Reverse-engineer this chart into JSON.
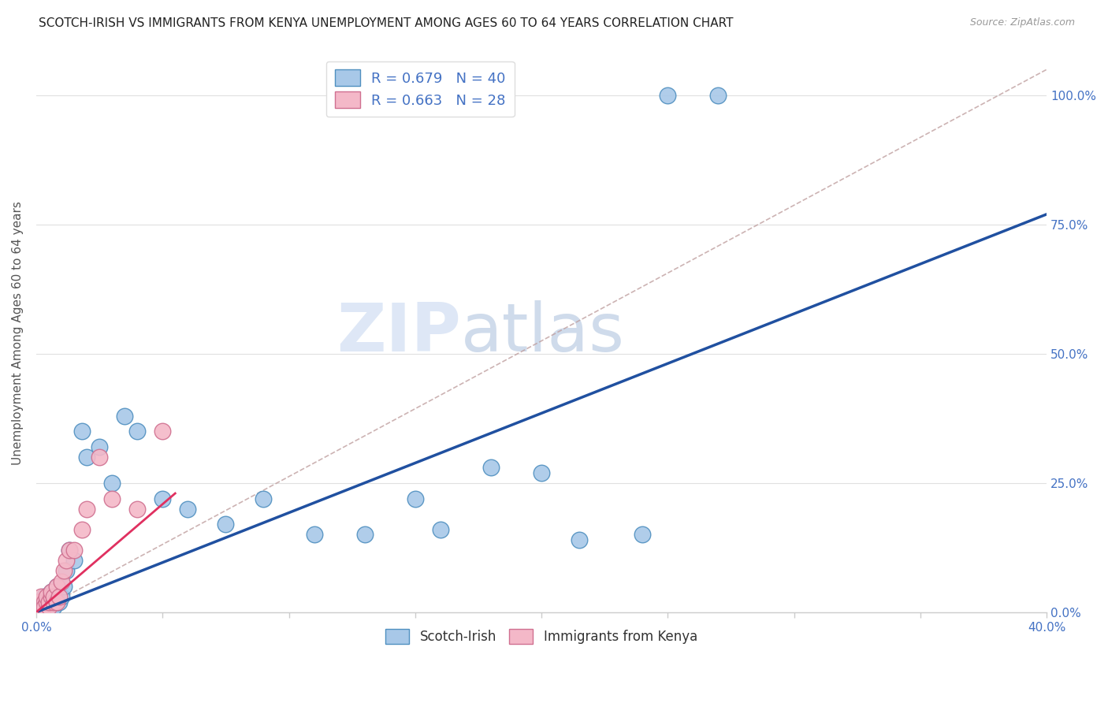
{
  "title": "SCOTCH-IRISH VS IMMIGRANTS FROM KENYA UNEMPLOYMENT AMONG AGES 60 TO 64 YEARS CORRELATION CHART",
  "source": "Source: ZipAtlas.com",
  "ylabel": "Unemployment Among Ages 60 to 64 years",
  "watermark_zip": "ZIP",
  "watermark_atlas": "atlas",
  "color_blue_fill": "#a8c8e8",
  "color_blue_edge": "#5090c0",
  "color_pink_fill": "#f4b8c8",
  "color_pink_edge": "#d07090",
  "color_line_blue": "#2050a0",
  "color_line_pink": "#e03060",
  "color_text": "#4472c4",
  "color_grid": "#e0e0e0",
  "color_axis": "#cccccc",
  "xlim": [
    0.0,
    0.4
  ],
  "ylim": [
    0.0,
    1.08
  ],
  "xticks": [
    0.0,
    0.05,
    0.1,
    0.15,
    0.2,
    0.25,
    0.3,
    0.35,
    0.4
  ],
  "yticks": [
    0.0,
    0.25,
    0.5,
    0.75,
    1.0
  ],
  "ytick_labels": [
    "0.0%",
    "25.0%",
    "50.0%",
    "75.0%",
    "100.0%"
  ],
  "blue_line_x": [
    0.0,
    0.4
  ],
  "blue_line_y": [
    0.0,
    0.77
  ],
  "pink_line_x": [
    0.0,
    0.055
  ],
  "pink_line_y": [
    0.0,
    0.23
  ],
  "dash_line_x": [
    0.0,
    0.4
  ],
  "dash_line_y": [
    0.0,
    1.05
  ],
  "scotch_x": [
    0.001,
    0.002,
    0.002,
    0.003,
    0.003,
    0.004,
    0.004,
    0.005,
    0.005,
    0.006,
    0.006,
    0.007,
    0.007,
    0.008,
    0.009,
    0.01,
    0.011,
    0.012,
    0.013,
    0.015,
    0.018,
    0.02,
    0.025,
    0.03,
    0.035,
    0.04,
    0.05,
    0.06,
    0.075,
    0.09,
    0.11,
    0.13,
    0.15,
    0.16,
    0.18,
    0.2,
    0.215,
    0.24,
    0.25,
    0.27
  ],
  "scotch_y": [
    0.01,
    0.01,
    0.02,
    0.01,
    0.03,
    0.02,
    0.01,
    0.02,
    0.03,
    0.01,
    0.04,
    0.02,
    0.01,
    0.05,
    0.02,
    0.03,
    0.05,
    0.08,
    0.12,
    0.1,
    0.35,
    0.3,
    0.32,
    0.25,
    0.38,
    0.35,
    0.22,
    0.2,
    0.17,
    0.22,
    0.15,
    0.15,
    0.22,
    0.16,
    0.28,
    0.27,
    0.14,
    0.15,
    1.0,
    1.0
  ],
  "kenya_x": [
    0.001,
    0.001,
    0.002,
    0.002,
    0.003,
    0.003,
    0.004,
    0.004,
    0.005,
    0.005,
    0.006,
    0.006,
    0.007,
    0.007,
    0.008,
    0.008,
    0.009,
    0.01,
    0.011,
    0.012,
    0.013,
    0.015,
    0.018,
    0.02,
    0.025,
    0.03,
    0.04,
    0.05
  ],
  "kenya_y": [
    0.01,
    0.02,
    0.01,
    0.03,
    0.02,
    0.01,
    0.02,
    0.03,
    0.01,
    0.02,
    0.03,
    0.04,
    0.02,
    0.03,
    0.05,
    0.02,
    0.03,
    0.06,
    0.08,
    0.1,
    0.12,
    0.12,
    0.16,
    0.2,
    0.3,
    0.22,
    0.2,
    0.35
  ]
}
